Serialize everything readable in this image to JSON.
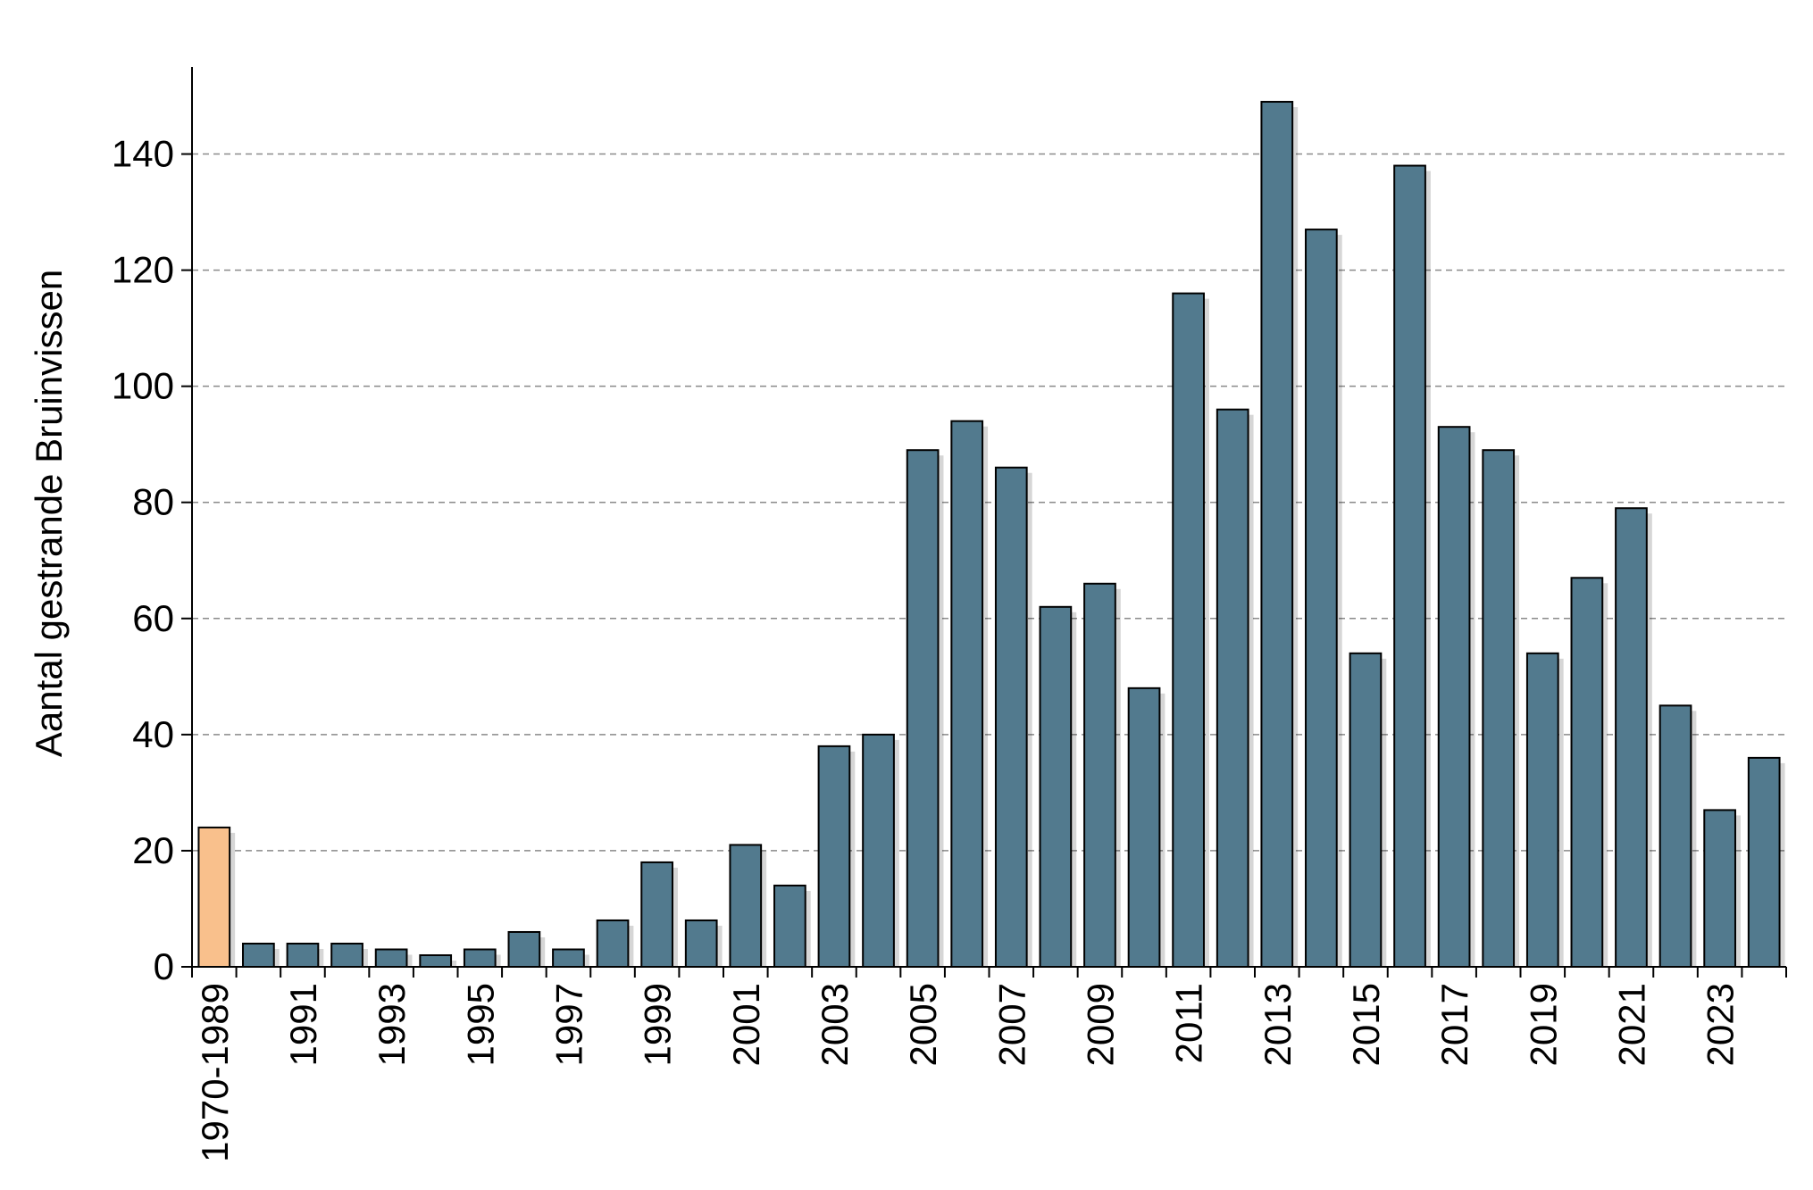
{
  "colors": {
    "bar": "#527a8e",
    "highlight_bar": "#f9c08c",
    "bar_stroke": "#000000",
    "grid": "#8a8a8a",
    "axis": "#000000"
  },
  "chart_data": {
    "type": "bar",
    "title": "",
    "xlabel": "",
    "ylabel": "Aantal gestrande Bruinvissen",
    "ylim": [
      0,
      155
    ],
    "yticks": [
      0,
      20,
      40,
      60,
      80,
      100,
      120,
      140
    ],
    "grid": "horizontal dashed",
    "legend": "none",
    "categories": [
      "1970-1989",
      "1990",
      "1991",
      "1992",
      "1993",
      "1994",
      "1995",
      "1996",
      "1997",
      "1998",
      "1999",
      "2000",
      "2001",
      "2002",
      "2003",
      "2004",
      "2005",
      "2006",
      "2007",
      "2008",
      "2009",
      "2010",
      "2011",
      "2012",
      "2013",
      "2014",
      "2015",
      "2016",
      "2017",
      "2018",
      "2019",
      "2020",
      "2021",
      "2022",
      "2023",
      "2024"
    ],
    "tick_labels": [
      "1970-1989",
      "",
      "1991",
      "",
      "1993",
      "",
      "1995",
      "",
      "1997",
      "",
      "1999",
      "",
      "2001",
      "",
      "2003",
      "",
      "2005",
      "",
      "2007",
      "",
      "2009",
      "",
      "2011",
      "",
      "2013",
      "",
      "2015",
      "",
      "2017",
      "",
      "2019",
      "",
      "2021",
      "",
      "2023",
      ""
    ],
    "values": [
      24,
      4,
      4,
      4,
      3,
      2,
      3,
      6,
      3,
      8,
      18,
      8,
      21,
      14,
      38,
      40,
      89,
      94,
      86,
      62,
      66,
      48,
      116,
      96,
      149,
      127,
      54,
      138,
      93,
      89,
      54,
      67,
      79,
      45,
      27,
      36
    ],
    "highlight_category": "1970-1989"
  }
}
